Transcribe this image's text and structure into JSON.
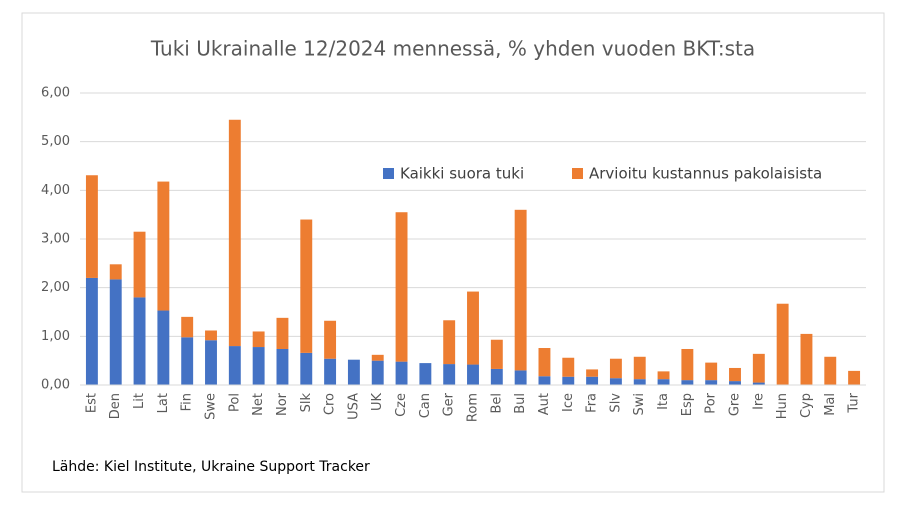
{
  "chart_data": {
    "type": "stacked-bar",
    "title": "Tuki Ukrainalle 12/2024 mennessä, % yhden vuoden BKT:sta",
    "source": "Lähde: Kiel Institute, Ukraine Support Tracker",
    "categories": [
      "Est",
      "Den",
      "Lit",
      "Lat",
      "Fin",
      "Swe",
      "Pol",
      "Net",
      "Nor",
      "Slk",
      "Cro",
      "USA",
      "UK",
      "Cze",
      "Can",
      "Ger",
      "Rom",
      "Bel",
      "Bul",
      "Aut",
      "Ice",
      "Fra",
      "Slv",
      "Swi",
      "Ita",
      "Esp",
      "Por",
      "Gre",
      "Ire",
      "Hun",
      "Cyp",
      "Mal",
      "Tur"
    ],
    "series": [
      {
        "name": "Kaikki suora tuki",
        "color": "#4472c4",
        "values": [
          2.2,
          2.17,
          1.8,
          1.53,
          0.98,
          0.92,
          0.8,
          0.78,
          0.74,
          0.66,
          0.54,
          0.52,
          0.5,
          0.48,
          0.45,
          0.43,
          0.42,
          0.33,
          0.3,
          0.18,
          0.17,
          0.17,
          0.14,
          0.12,
          0.12,
          0.1,
          0.1,
          0.08,
          0.05,
          0.01,
          0.01,
          0.01,
          0
        ]
      },
      {
        "name": "Arvioitu kustannus pakolaisista",
        "color": "#ed7d31",
        "values": [
          2.11,
          0.31,
          1.35,
          2.65,
          0.42,
          0.2,
          4.65,
          0.32,
          0.64,
          2.74,
          0.78,
          0,
          0.12,
          3.07,
          0,
          0.9,
          1.5,
          0.6,
          3.3,
          0.58,
          0.39,
          0.15,
          0.4,
          0.46,
          0.16,
          0.64,
          0.36,
          0.27,
          0.59,
          1.66,
          1.04,
          0.57,
          0.29
        ]
      }
    ],
    "ylim": [
      0,
      6
    ],
    "yticks": [
      {
        "value": 0,
        "label": "0,00"
      },
      {
        "value": 1,
        "label": "1,00"
      },
      {
        "value": 2,
        "label": "2,00"
      },
      {
        "value": 3,
        "label": "3,00"
      },
      {
        "value": 4,
        "label": "4,00"
      },
      {
        "value": 5,
        "label": "5,00"
      },
      {
        "value": 6,
        "label": "6,00"
      }
    ],
    "grid": true
  }
}
